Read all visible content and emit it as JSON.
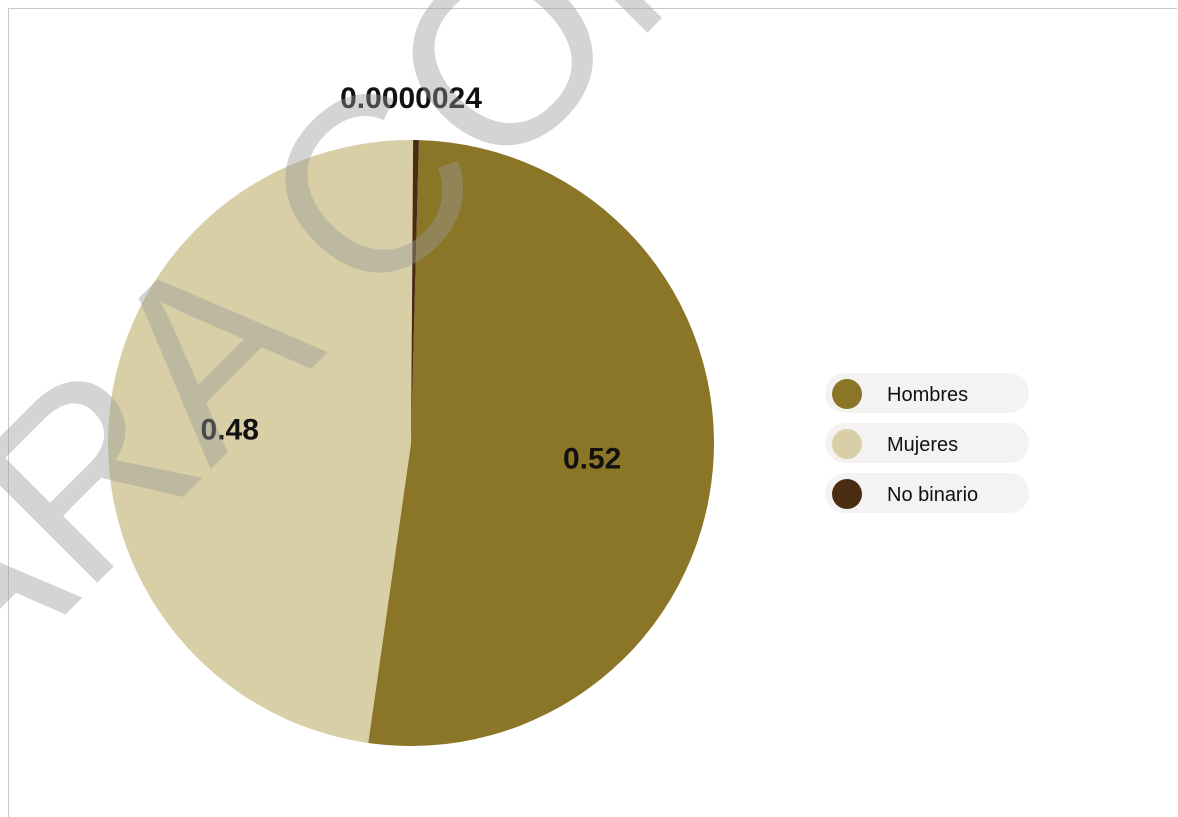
{
  "watermark": "PARA CON",
  "chart_data": {
    "type": "pie",
    "title": "",
    "slices": [
      {
        "label": "Hombres",
        "value": 0.52,
        "display": "0.52",
        "color": "#8b7628"
      },
      {
        "label": "Mujeres",
        "value": 0.48,
        "display": "0.48",
        "color": "#d8cfa6"
      },
      {
        "label": "No binario",
        "value": 2.4e-06,
        "display": "0.0000024",
        "color": "#4a2c12"
      }
    ],
    "legend_position": "right",
    "start_angle_deg": -88.5,
    "no_binario_visible_angle_deg": 1.1
  }
}
